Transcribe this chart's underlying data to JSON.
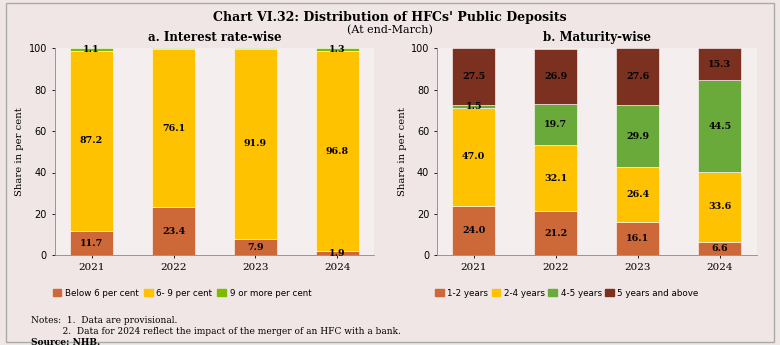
{
  "title": "Chart VI.32: Distribution of HFCs' Public Deposits",
  "subtitle": "(At end-March)",
  "background_color": "#f0e6e6",
  "panel_background": "#f5eeee",
  "notes_line1": "Notes:  1.  Data are provisional.",
  "notes_line2": "           2.  Data for 2024 reflect the impact of the merger of an HFC with a bank.",
  "notes_line3": "Source: NHB.",
  "left_chart": {
    "title": "a. Interest rate-wise",
    "years": [
      "2021",
      "2022",
      "2023",
      "2024"
    ],
    "series": [
      {
        "label": "Below 6 per cent",
        "color": "#cd6839",
        "values": [
          11.7,
          23.4,
          7.9,
          1.9
        ]
      },
      {
        "label": "6- 9 per cent",
        "color": "#ffc200",
        "values": [
          87.2,
          76.1,
          91.9,
          96.8
        ]
      },
      {
        "label": "9 or more per cent",
        "color": "#7cbb00",
        "values": [
          1.1,
          0.5,
          0.2,
          1.3
        ]
      }
    ],
    "ylabel": "Share in per cent",
    "ylim": [
      0,
      105
    ]
  },
  "right_chart": {
    "title": "b. Maturity-wise",
    "years": [
      "2021",
      "2022",
      "2023",
      "2024"
    ],
    "series": [
      {
        "label": "1-2 years",
        "color": "#cd6839",
        "values": [
          24.0,
          21.2,
          16.1,
          6.6
        ]
      },
      {
        "label": "2-4 years",
        "color": "#ffc200",
        "values": [
          47.0,
          32.1,
          26.4,
          33.6
        ]
      },
      {
        "label": "4-5 years",
        "color": "#6aaa3a",
        "values": [
          1.5,
          19.7,
          29.9,
          44.5
        ]
      },
      {
        "label": "5 years and above",
        "color": "#7b3020",
        "values": [
          27.5,
          26.9,
          27.6,
          15.3
        ]
      }
    ],
    "ylabel": "Share in per cent",
    "ylim": [
      0,
      105
    ]
  }
}
